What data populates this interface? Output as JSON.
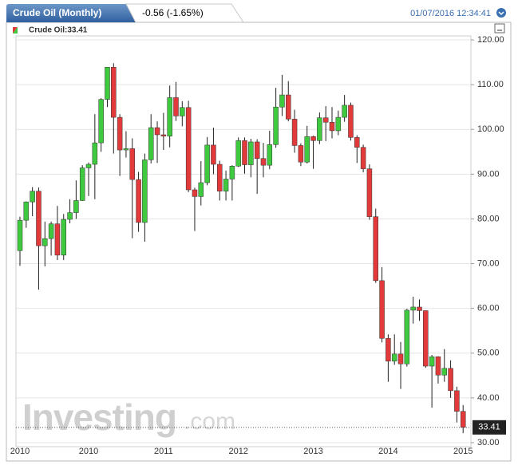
{
  "chart_data": {
    "type": "candlestick",
    "title": "Crude Oil (Monthly)",
    "change": "-0.56 (-1.65%)",
    "timestamp": "01/07/2016 12:34:41",
    "legend": "Crude Oil:33.41",
    "watermark": "Investing",
    "watermark_suffix": ".com",
    "up_color": "#3ec93e",
    "down_color": "#e23a3a",
    "categories": [
      "2010",
      null,
      null,
      null,
      null,
      null,
      null,
      null,
      null,
      null,
      null,
      "2010",
      null,
      null,
      null,
      null,
      null,
      null,
      null,
      null,
      null,
      null,
      null,
      "2011",
      null,
      null,
      null,
      null,
      null,
      null,
      null,
      null,
      null,
      null,
      null,
      "2012",
      null,
      null,
      null,
      null,
      null,
      null,
      null,
      null,
      null,
      null,
      null,
      "2013",
      null,
      null,
      null,
      null,
      null,
      null,
      null,
      null,
      null,
      null,
      null,
      "2014",
      null,
      null,
      null,
      null,
      null,
      null,
      null,
      null,
      null,
      null,
      null,
      "2015"
    ],
    "open": [
      72.9,
      79.7,
      83.8,
      86.2,
      74.0,
      75.6,
      78.9,
      71.9,
      79.9,
      81.4,
      84.1,
      91.4,
      92.2,
      97.0,
      106.7,
      113.9,
      102.7,
      95.4,
      95.7,
      88.8,
      79.2,
      93.2,
      100.4,
      98.8,
      98.5,
      107.1,
      103.0,
      104.9,
      86.5,
      85.0,
      88.1,
      96.5,
      92.2,
      86.2,
      88.9,
      91.8,
      97.5,
      92.1,
      97.2,
      93.5,
      92.0,
      96.6,
      105.0,
      107.7,
      102.3,
      96.4,
      92.7,
      98.4,
      97.5,
      102.6,
      101.6,
      99.7,
      102.7,
      105.4,
      98.2,
      96.0,
      91.2,
      80.5,
      66.2,
      53.3,
      48.2,
      49.8,
      47.6,
      59.6,
      60.3,
      59.5,
      47.1,
      49.2,
      45.1,
      46.6,
      41.6,
      37.0
    ],
    "high": [
      80.5,
      83.9,
      87.1,
      87.0,
      79.4,
      79.4,
      82.9,
      81.1,
      84.4,
      88.6,
      92.0,
      92.6,
      103.4,
      107.0,
      113.9,
      114.8,
      103.4,
      99.6,
      98.0,
      90.5,
      94.6,
      103.4,
      101.8,
      103.7,
      109.8,
      110.6,
      106.3,
      106.4,
      87.0,
      92.9,
      98.3,
      100.4,
      93.0,
      90.8,
      92.0,
      98.2,
      98.2,
      97.9,
      97.8,
      97.0,
      99.7,
      109.3,
      112.2,
      110.8,
      104.4,
      96.9,
      100.8,
      98.6,
      103.8,
      105.2,
      104.99,
      104.2,
      107.7,
      106.0,
      98.7,
      96.6,
      92.2,
      82.3,
      69.2,
      54.2,
      54.2,
      52.5,
      59.9,
      62.6,
      62.0,
      59.5,
      49.6,
      49.3,
      50.9,
      48.4,
      42.5,
      38.4
    ],
    "low": [
      69.5,
      78.0,
      80.6,
      64.2,
      69.4,
      71.8,
      70.8,
      70.8,
      79.0,
      80.0,
      84.0,
      85.1,
      84.4,
      95.0,
      105.0,
      94.6,
      89.6,
      93.7,
      75.7,
      77.1,
      74.9,
      92.4,
      92.5,
      95.4,
      96.0,
      101.9,
      100.7,
      86.0,
      77.3,
      83.0,
      87.5,
      90.0,
      84.1,
      84.1,
      84.1,
      91.6,
      90.1,
      89.3,
      85.6,
      89.3,
      91.1,
      95.9,
      103.0,
      101.8,
      94.8,
      91.8,
      92.4,
      91.2,
      96.7,
      97.4,
      98.0,
      98.7,
      101.7,
      97.5,
      92.5,
      90.4,
      79.8,
      65.7,
      52.4,
      43.6,
      47.4,
      42.0,
      47.0,
      56.6,
      57.2,
      46.7,
      37.8,
      43.2,
      43.6,
      40.0,
      34.5,
      32.1
    ],
    "close": [
      79.7,
      83.8,
      86.2,
      74.0,
      75.6,
      78.9,
      71.9,
      79.9,
      81.4,
      84.1,
      91.4,
      92.2,
      97.0,
      106.7,
      113.9,
      102.7,
      95.4,
      95.7,
      88.8,
      79.2,
      93.2,
      100.4,
      98.8,
      98.5,
      107.1,
      103.0,
      104.9,
      86.5,
      85.0,
      88.1,
      96.5,
      92.2,
      86.2,
      88.9,
      91.8,
      97.5,
      92.1,
      97.2,
      93.5,
      92.0,
      96.6,
      105.0,
      107.7,
      102.3,
      96.4,
      92.7,
      98.4,
      97.5,
      102.6,
      101.6,
      99.7,
      102.7,
      105.4,
      98.2,
      96.0,
      91.2,
      80.5,
      66.2,
      53.3,
      48.2,
      49.8,
      47.6,
      59.6,
      60.3,
      59.5,
      47.1,
      49.2,
      45.1,
      46.6,
      41.6,
      37.0,
      33.41
    ],
    "ylim": [
      29.1,
      120.9
    ],
    "yticks": [
      {
        "value": 30,
        "label": "30.00"
      },
      {
        "value": 40,
        "label": "40.00"
      },
      {
        "value": 50,
        "label": "50.00"
      },
      {
        "value": 60,
        "label": "60.00"
      },
      {
        "value": 70,
        "label": "70.00"
      },
      {
        "value": 80,
        "label": "80.00"
      },
      {
        "value": 90,
        "label": "90.00"
      },
      {
        "value": 100,
        "label": "100.00"
      },
      {
        "value": 110,
        "label": "110.00"
      },
      {
        "value": 120,
        "label": "120.00"
      }
    ],
    "grid": true
  }
}
